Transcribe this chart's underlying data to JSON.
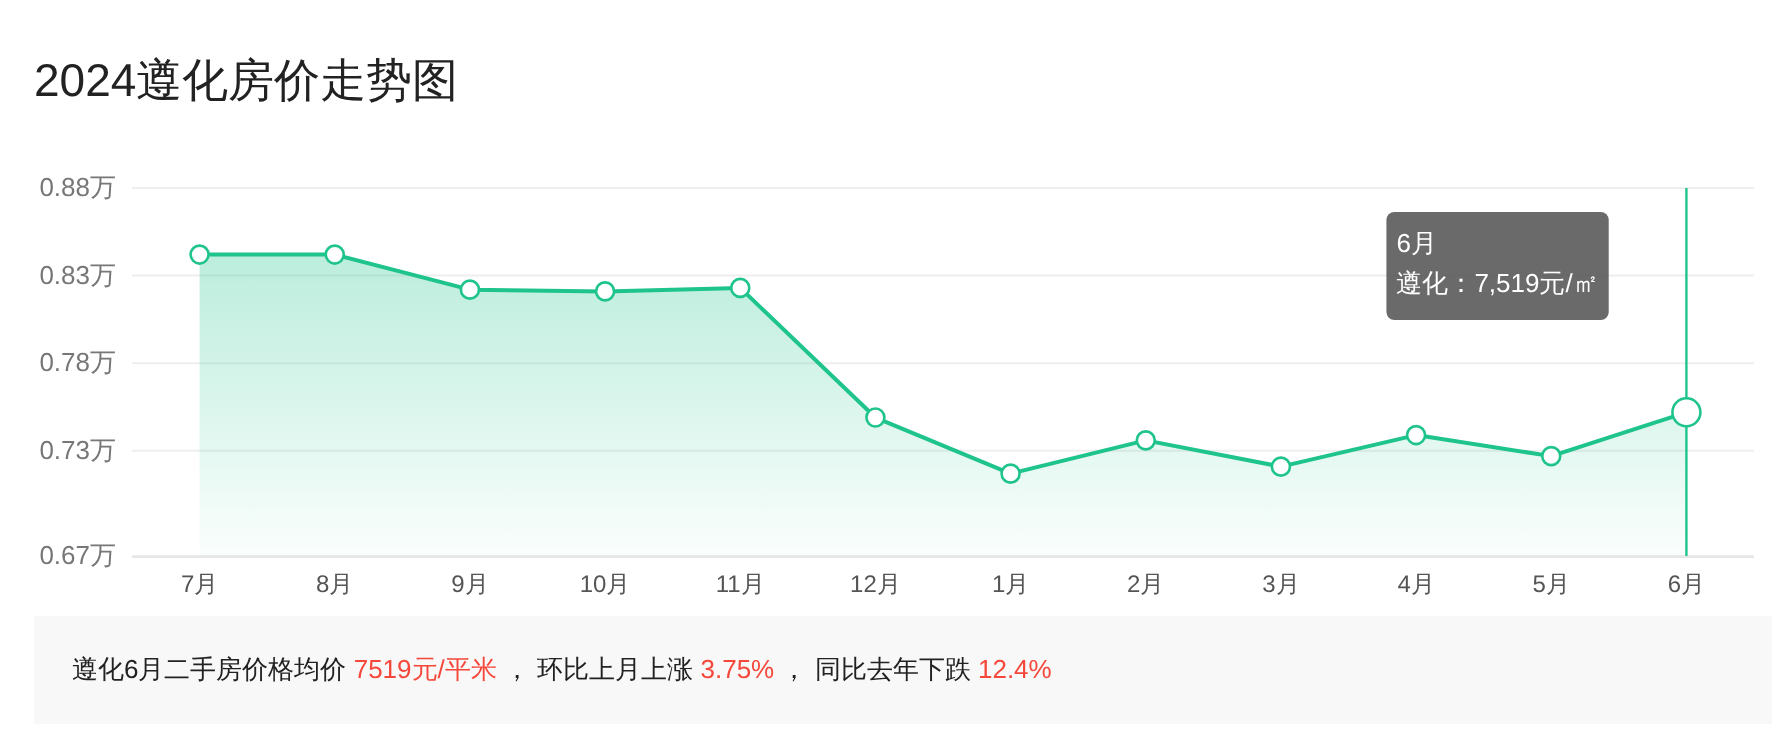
{
  "chart_data": {
    "type": "area",
    "title": "2024遵化房价走势图",
    "categories": [
      "7月",
      "8月",
      "9月",
      "10月",
      "11月",
      "12月",
      "1月",
      "2月",
      "3月",
      "4月",
      "5月",
      "6月"
    ],
    "series": [
      {
        "color": "#1ec48b",
        "values": [
          0.842,
          0.842,
          0.822,
          0.821,
          0.823,
          0.749,
          0.717,
          0.736,
          0.721,
          0.739,
          0.727,
          0.752
        ]
      }
    ],
    "ylim": [
      0.67,
      0.88
    ],
    "yticks": [
      {
        "value": 0.67,
        "label": "0.67万"
      },
      {
        "value": 0.73,
        "label": "0.73万"
      },
      {
        "value": 0.78,
        "label": "0.78万"
      },
      {
        "value": 0.83,
        "label": "0.83万"
      },
      {
        "value": 0.88,
        "label": "0.88万"
      }
    ],
    "grid": "y",
    "marker": "circle",
    "ref_lines": [
      {
        "axis": "x",
        "value": "6月",
        "color": "#1ec48b"
      }
    ],
    "annotations": [
      "6月",
      "遵化：7,519元/㎡",
      "遵化6月二手房价格均价 7519元/平米 ， 环比上月上涨 3.75% ， 同比去年下跌 12.4%"
    ]
  }
}
